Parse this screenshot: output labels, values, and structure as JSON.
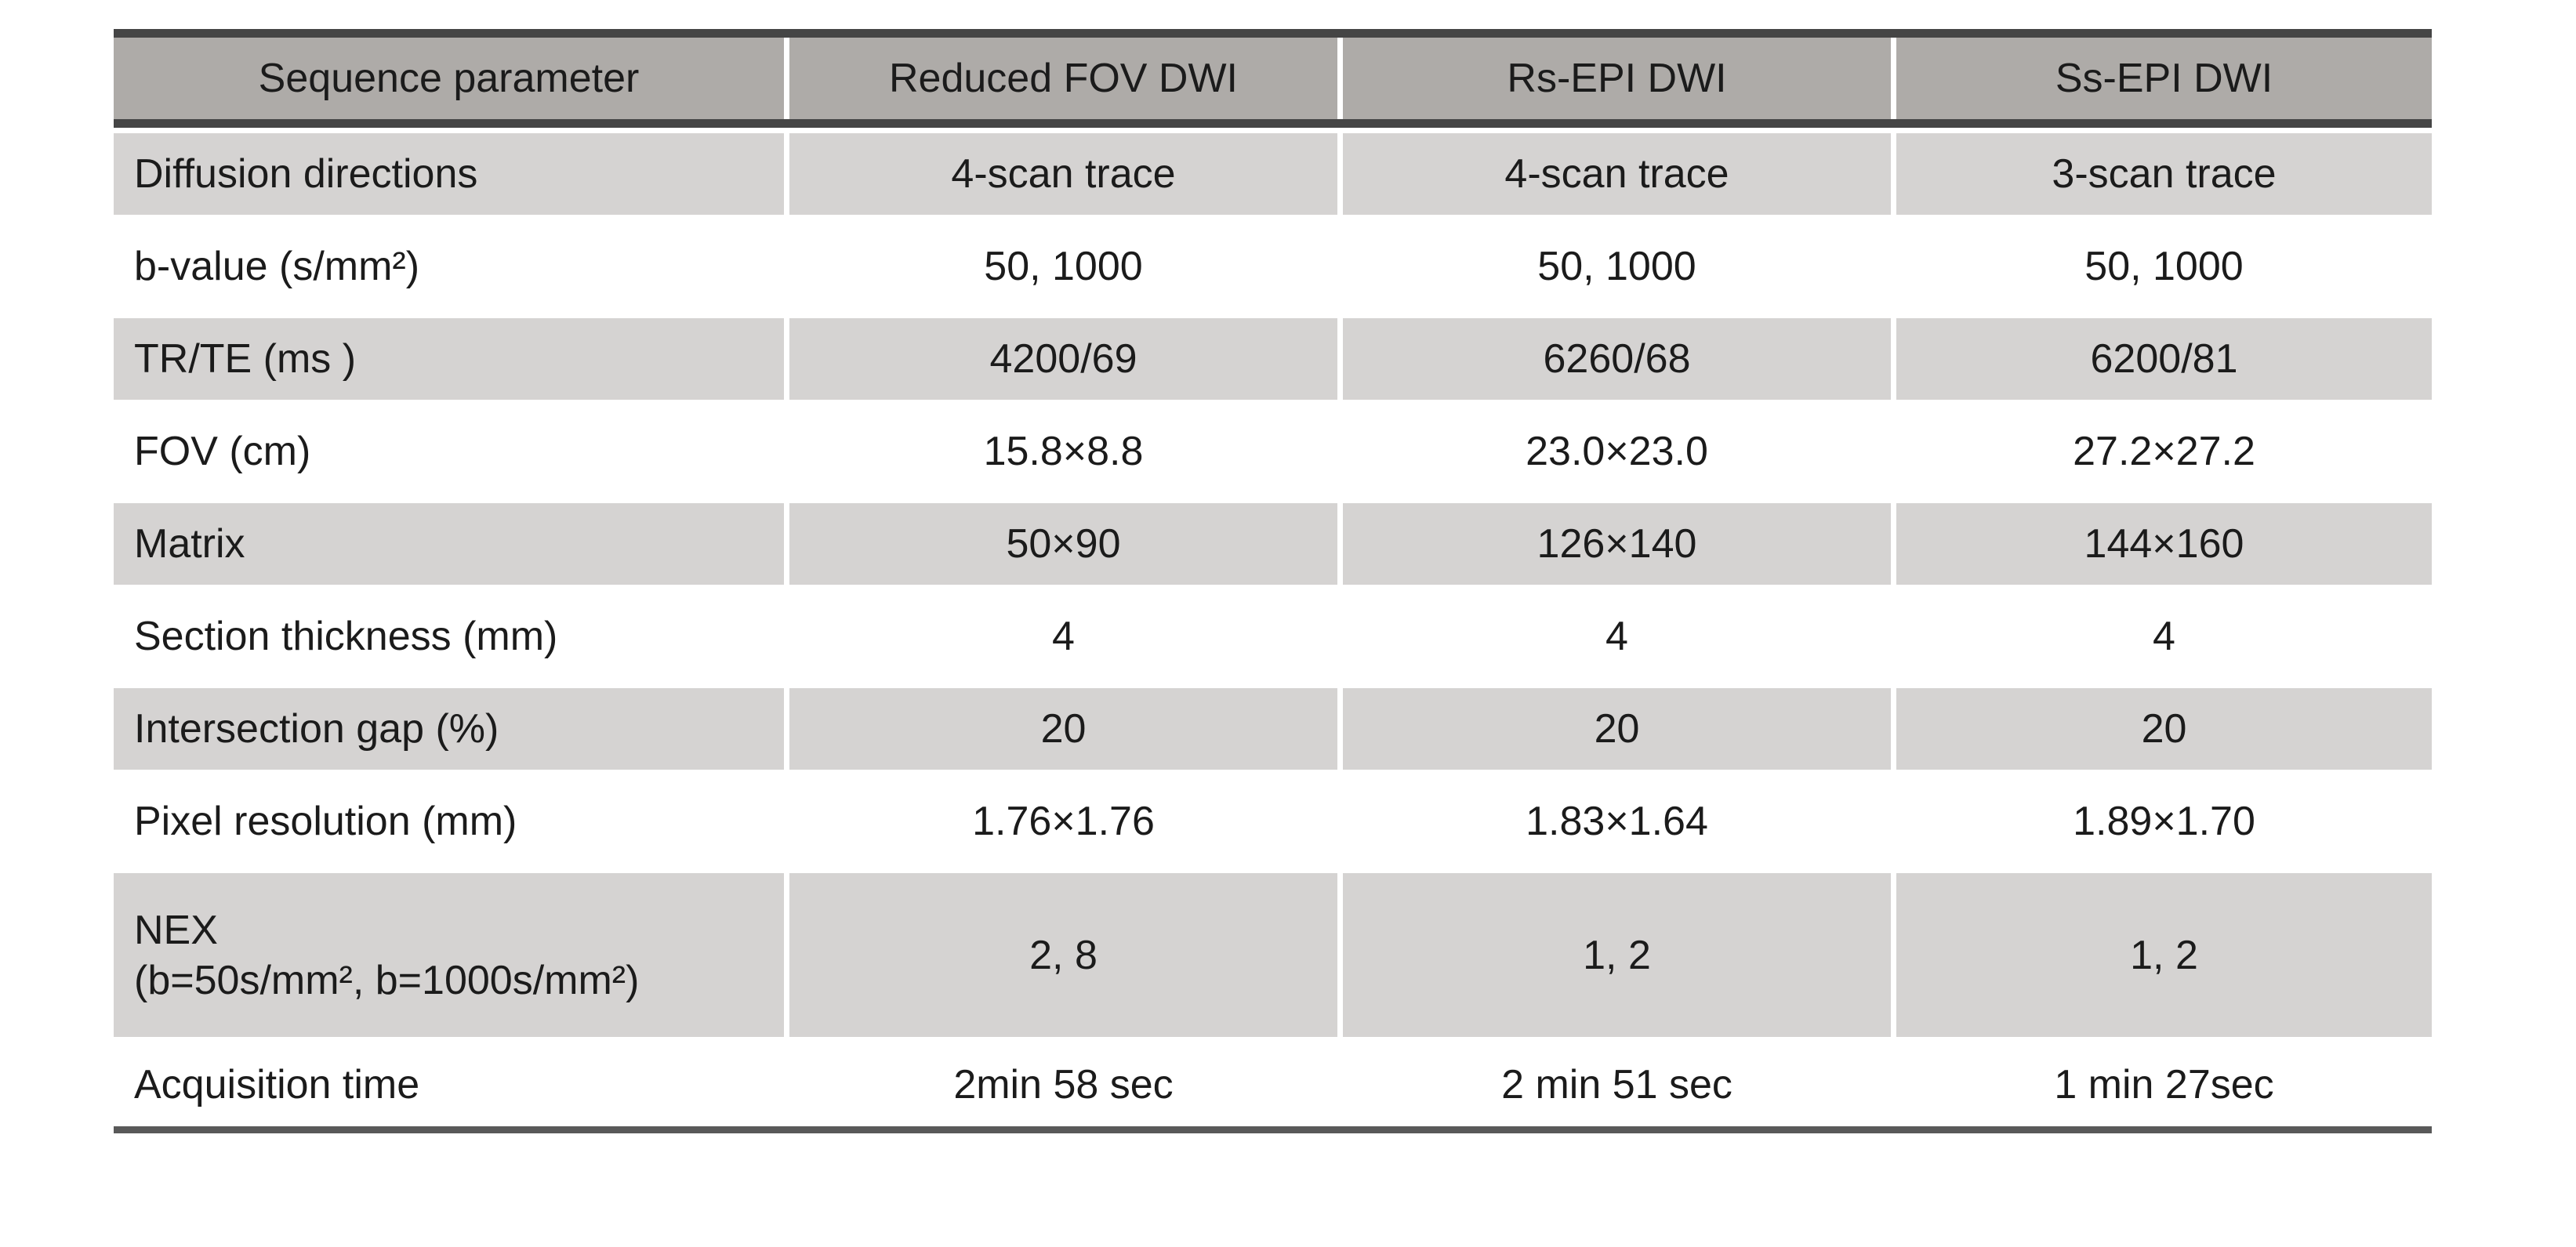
{
  "table": {
    "header": [
      "Sequence parameter",
      "Reduced FOV DWI",
      "Rs-EPI DWI",
      "Ss-EPI DWI"
    ],
    "rows": [
      {
        "cells": [
          "Diffusion directions",
          "4-scan trace",
          "4-scan trace",
          "3-scan trace"
        ]
      },
      {
        "cells": [
          "b-value (s/mm²)",
          "50, 1000",
          "50, 1000",
          "50, 1000"
        ]
      },
      {
        "cells": [
          "TR/TE (ms )",
          "4200/69",
          "6260/68",
          "6200/81"
        ]
      },
      {
        "cells": [
          "FOV (cm)",
          "15.8×8.8",
          "23.0×23.0",
          "27.2×27.2"
        ]
      },
      {
        "cells": [
          "Matrix",
          "50×90",
          "126×140",
          "144×160"
        ]
      },
      {
        "cells": [
          "Section thickness (mm)",
          "4",
          "4",
          "4"
        ]
      },
      {
        "cells": [
          "Intersection gap (%)",
          "20",
          "20",
          "20"
        ]
      },
      {
        "cells": [
          "Pixel resolution (mm)",
          "1.76×1.76",
          "1.83×1.64",
          "1.89×1.70"
        ]
      },
      {
        "cells": [
          "NEX",
          "2, 8",
          "1, 2",
          "1, 2"
        ],
        "param_line2": "(b=50s/mm², b=1000s/mm²)"
      },
      {
        "cells": [
          "Acquisition time",
          "2min 58 sec",
          "2 min 51 sec",
          "1 min 27sec"
        ]
      }
    ],
    "colors": {
      "header_bg": "#aeaba8",
      "band_bg": "#d5d3d2",
      "rule_dark": "#454545",
      "rule_bottom": "#595959",
      "text": "#1b1b1b",
      "page_bg": "#ffffff"
    }
  }
}
